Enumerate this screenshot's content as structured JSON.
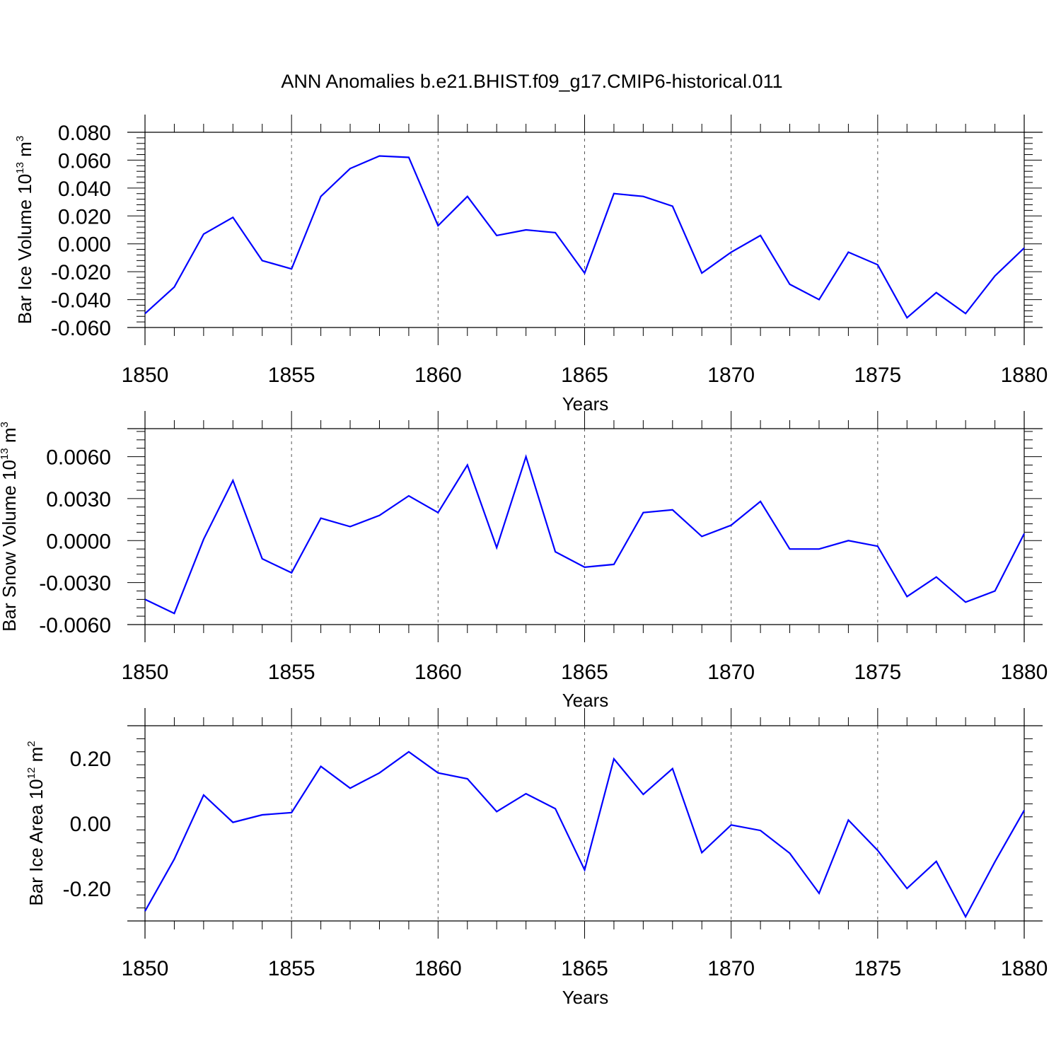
{
  "chart_data": {
    "type": "line",
    "title": "ANN Anomalies b.e21.BHIST.f09_g17.CMIP6-historical.011",
    "x": [
      1850,
      1851,
      1852,
      1853,
      1854,
      1855,
      1856,
      1857,
      1858,
      1859,
      1860,
      1861,
      1862,
      1863,
      1864,
      1865,
      1866,
      1867,
      1868,
      1869,
      1870,
      1871,
      1872,
      1873,
      1874,
      1875,
      1876,
      1877,
      1878,
      1879,
      1880
    ],
    "xlim": [
      1850,
      1880
    ],
    "xticks": [
      "1850",
      "1855",
      "1860",
      "1865",
      "1870",
      "1875",
      "1880"
    ],
    "xlabel": "Years",
    "grid": "vertical dashed at major x ticks",
    "line_color": "#0000ff",
    "panels": [
      {
        "ylabel_main": "Bar Ice Volume 10",
        "ylabel_exp": "13",
        "ylabel_unit": " m",
        "ylabel_unit_exp": "3",
        "ylim": [
          -0.06,
          0.08
        ],
        "yticks": [
          -0.06,
          -0.04,
          -0.02,
          0.0,
          0.02,
          0.04,
          0.06,
          0.08
        ],
        "ytick_labels": [
          "-0.060",
          "-0.040",
          "-0.020",
          "0.000",
          "0.020",
          "0.040",
          "0.060",
          "0.080"
        ],
        "series": [
          {
            "name": "Bar Ice Volume",
            "values": [
              -0.05,
              -0.031,
              0.007,
              0.019,
              -0.012,
              -0.018,
              0.034,
              0.054,
              0.063,
              0.062,
              0.013,
              0.034,
              0.006,
              0.01,
              0.008,
              -0.021,
              0.036,
              0.034,
              0.027,
              -0.021,
              -0.006,
              0.006,
              -0.029,
              -0.04,
              -0.006,
              -0.015,
              -0.053,
              -0.035,
              -0.05,
              -0.023,
              -0.003
            ]
          }
        ]
      },
      {
        "ylabel_main": "Bar Snow Volume 10",
        "ylabel_exp": "13",
        "ylabel_unit": " m",
        "ylabel_unit_exp": "3",
        "ylim": [
          -0.006,
          0.008
        ],
        "yticks": [
          -0.006,
          -0.003,
          0.0,
          0.003,
          0.006
        ],
        "ytick_labels": [
          "-0.0060",
          "-0.0030",
          "0.0000",
          "0.0030",
          "0.0060"
        ],
        "series": [
          {
            "name": "Bar Snow Volume",
            "values": [
              -0.0042,
              -0.0052,
              0.0001,
              0.0043,
              -0.0013,
              -0.0023,
              0.0016,
              0.001,
              0.0018,
              0.0032,
              0.002,
              0.0054,
              -0.0005,
              0.006,
              -0.0008,
              -0.0019,
              -0.0017,
              0.002,
              0.0022,
              0.0003,
              0.0011,
              0.0028,
              -0.0006,
              -0.0006,
              0.0,
              -0.0004,
              -0.004,
              -0.0026,
              -0.0044,
              -0.0036,
              0.0005
            ]
          }
        ]
      },
      {
        "ylabel_main": "Bar Ice Area 10",
        "ylabel_exp": "12",
        "ylabel_unit": " m",
        "ylabel_unit_exp": "2",
        "ylim": [
          -0.3,
          0.3
        ],
        "yticks": [
          -0.2,
          0.0,
          0.2
        ],
        "ytick_labels": [
          "-0.20",
          "0.00",
          "0.20"
        ],
        "series": [
          {
            "name": "Bar Ice Area",
            "values": [
              -0.27,
              -0.11,
              0.087,
              0.003,
              0.026,
              0.033,
              0.175,
              0.108,
              0.155,
              0.22,
              0.155,
              0.137,
              0.036,
              0.091,
              0.045,
              -0.143,
              0.198,
              0.089,
              0.168,
              -0.09,
              -0.005,
              -0.022,
              -0.092,
              -0.215,
              0.01,
              -0.083,
              -0.2,
              -0.117,
              -0.287,
              -0.118,
              0.04
            ]
          }
        ]
      }
    ]
  }
}
